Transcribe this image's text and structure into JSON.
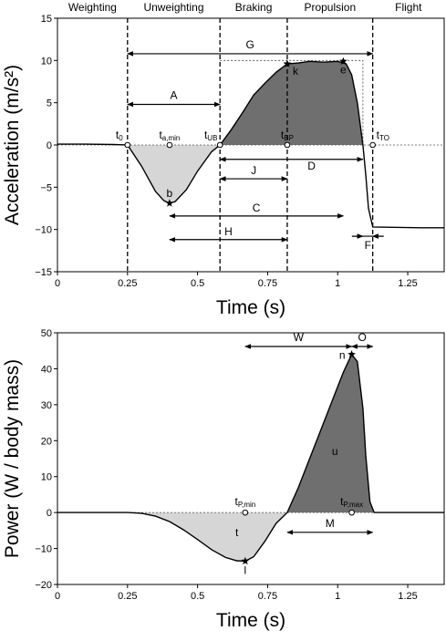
{
  "chart_data": [
    {
      "type": "line",
      "xlabel": "Time (s)",
      "ylabel": "Acceleration (m/s²)",
      "xlim": [
        0,
        1.38
      ],
      "ylim": [
        -15,
        15
      ],
      "xticks": [
        0,
        0.25,
        0.5,
        0.75,
        1,
        1.25
      ],
      "xtick_labels": [
        "0",
        "0.25",
        "0.5",
        "0.75",
        "1",
        "1.25"
      ],
      "yticks": [
        -15,
        -10,
        -5,
        0,
        5,
        10,
        15
      ],
      "ytick_labels": [
        "−15",
        "−10",
        "−5",
        "0",
        "5",
        "10",
        "15"
      ],
      "phases": [
        "Weighting",
        "Unweighting",
        "Braking",
        "Propulsion",
        "Flight"
      ],
      "phase_boundaries": [
        0.25,
        0.58,
        0.82,
        1.125
      ],
      "x": [
        0,
        0.1,
        0.2,
        0.25,
        0.3,
        0.35,
        0.38,
        0.4,
        0.42,
        0.46,
        0.5,
        0.55,
        0.58,
        0.62,
        0.66,
        0.7,
        0.74,
        0.78,
        0.82,
        0.86,
        0.9,
        0.95,
        1.0,
        1.03,
        1.05,
        1.07,
        1.09,
        1.1,
        1.11,
        1.125,
        1.2,
        1.3,
        1.38
      ],
      "y": [
        0.1,
        0.1,
        0.05,
        0,
        -2.5,
        -5.5,
        -6.6,
        -6.9,
        -6.7,
        -5.3,
        -3.1,
        -0.8,
        0,
        1.8,
        3.8,
        5.9,
        7.3,
        8.6,
        9.6,
        9.7,
        9.9,
        9.8,
        9.9,
        9.6,
        8.3,
        5.0,
        0,
        -3.5,
        -7.5,
        -9.7,
        -9.75,
        -9.8,
        -9.8
      ],
      "markers": [
        {
          "label": "t0",
          "sub": "0",
          "x": 0.25,
          "y": 0
        },
        {
          "label": "ta,min",
          "sub": "a,min",
          "x": 0.4,
          "y": 0
        },
        {
          "label": "tUB",
          "sub": "UB",
          "x": 0.58,
          "y": 0
        },
        {
          "label": "tBP",
          "sub": "BP",
          "x": 0.82,
          "y": 0
        },
        {
          "label": "tTO",
          "sub": "TO",
          "x": 1.125,
          "y": 0
        }
      ],
      "points": [
        {
          "label": "b",
          "x": 0.4,
          "y": -6.9
        },
        {
          "label": "k",
          "x": 0.82,
          "y": 9.6
        },
        {
          "label": "e",
          "x": 1.02,
          "y": 9.9
        }
      ],
      "spans": [
        {
          "label": "G",
          "x1": 0.25,
          "x2": 1.125,
          "y": 10.8,
          "style": "both"
        },
        {
          "label": "A",
          "x1": 0.25,
          "x2": 0.58,
          "y": 4.8,
          "style": "both"
        },
        {
          "label": "D",
          "x1": 0.58,
          "x2": 1.09,
          "y": -1.7,
          "style": "both"
        },
        {
          "label": "J",
          "x1": 0.58,
          "x2": 0.82,
          "y": -4.0,
          "style": "both"
        },
        {
          "label": "C",
          "x1": 0.4,
          "x2": 1.02,
          "y": -8.4,
          "style": "both"
        },
        {
          "label": "H",
          "x1": 0.4,
          "x2": 0.82,
          "y": -11.2,
          "style": "both"
        },
        {
          "label": "F",
          "x1": 1.09,
          "x2": 1.125,
          "y": -10.8,
          "style": "converge"
        }
      ]
    },
    {
      "type": "line",
      "xlabel": "Time (s)",
      "ylabel": "Power (W / body mass)",
      "xlim": [
        0,
        1.38
      ],
      "ylim": [
        -20,
        50
      ],
      "xticks": [
        0,
        0.25,
        0.5,
        0.75,
        1,
        1.25
      ],
      "xtick_labels": [
        "0",
        "0.25",
        "0.5",
        "0.75",
        "1",
        "1.25"
      ],
      "yticks": [
        -20,
        -10,
        0,
        10,
        20,
        30,
        40,
        50
      ],
      "ytick_labels": [
        "−20",
        "−10",
        "0",
        "10",
        "20",
        "30",
        "40",
        "50"
      ],
      "x": [
        0,
        0.2,
        0.25,
        0.3,
        0.35,
        0.4,
        0.45,
        0.5,
        0.55,
        0.6,
        0.64,
        0.67,
        0.7,
        0.74,
        0.78,
        0.82,
        0.86,
        0.9,
        0.94,
        0.98,
        1.02,
        1.05,
        1.07,
        1.09,
        1.1,
        1.115,
        1.13,
        1.38
      ],
      "y": [
        0,
        0,
        0,
        -0.2,
        -1,
        -2.5,
        -4.8,
        -7.5,
        -10.3,
        -12.5,
        -13.4,
        -13.5,
        -12.3,
        -8,
        -3,
        0,
        7,
        15,
        23,
        31,
        39,
        44,
        42,
        29,
        16,
        3,
        0,
        0
      ],
      "markers": [
        {
          "label": "tP,min",
          "sub": "P,min",
          "x": 0.67,
          "y": 0
        },
        {
          "label": "tP,max",
          "sub": "P,max",
          "x": 1.05,
          "y": 0
        }
      ],
      "points": [
        {
          "label": "l",
          "x": 0.67,
          "y": -13.5
        },
        {
          "label": "n",
          "x": 1.05,
          "y": 44
        }
      ],
      "area_labels": [
        {
          "label": "t",
          "x": 0.64,
          "y": -6.5
        },
        {
          "label": "u",
          "x": 0.99,
          "y": 16
        }
      ],
      "spans": [
        {
          "label": "W",
          "x1": 0.67,
          "x2": 1.05,
          "y": 46.2,
          "style": "both"
        },
        {
          "label": "O",
          "x1": 1.05,
          "x2": 1.125,
          "y": 46.2,
          "style": "both"
        },
        {
          "label": "M",
          "x1": 0.82,
          "x2": 1.125,
          "y": -5.5,
          "style": "both"
        }
      ]
    }
  ]
}
